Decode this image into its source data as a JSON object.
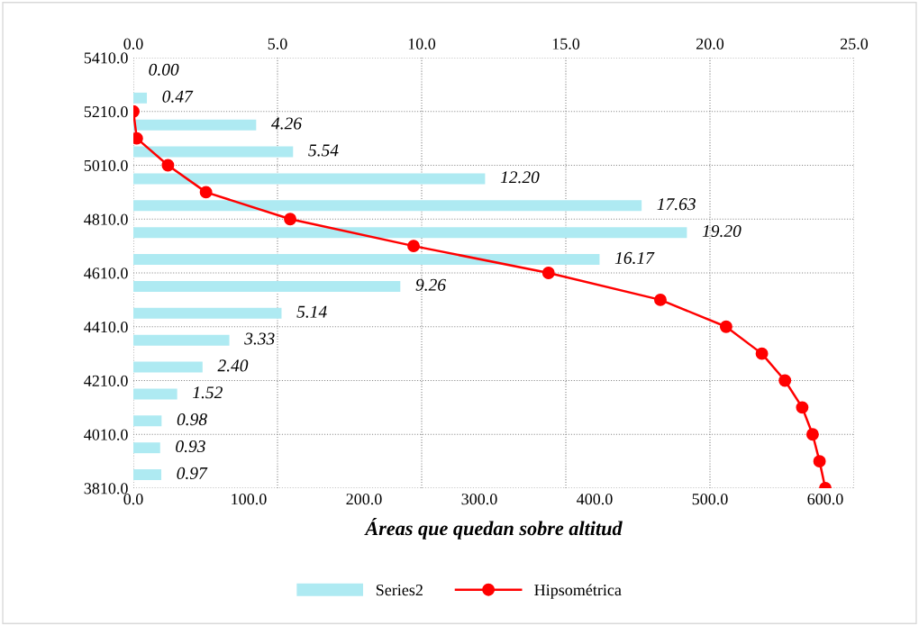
{
  "chart_data": {
    "type": "bar",
    "orientation": "horizontal",
    "xlabel": "Áreas que quedan sobre altitud",
    "xlim": [
      0,
      625
    ],
    "xticks": [
      {
        "value": 0,
        "label": "0.0"
      },
      {
        "value": 100,
        "label": "100.0"
      },
      {
        "value": 200,
        "label": "200.0"
      },
      {
        "value": 300,
        "label": "300.0"
      },
      {
        "value": 400,
        "label": "400.0"
      },
      {
        "value": 500,
        "label": "500.0"
      },
      {
        "value": 600,
        "label": "600.0"
      }
    ],
    "x2lim": [
      0,
      25
    ],
    "x2ticks": [
      {
        "value": 0,
        "label": "0.0"
      },
      {
        "value": 5,
        "label": "5.0"
      },
      {
        "value": 10,
        "label": "10.0"
      },
      {
        "value": 15,
        "label": "15.0"
      },
      {
        "value": 20,
        "label": "20.0"
      },
      {
        "value": 25,
        "label": "25.0"
      }
    ],
    "ylim": [
      3810,
      5410
    ],
    "yticks": [
      {
        "value": 3810,
        "label": "3810.0"
      },
      {
        "value": 4010,
        "label": "4010.0"
      },
      {
        "value": 4210,
        "label": "4210.0"
      },
      {
        "value": 4410,
        "label": "4410.0"
      },
      {
        "value": 4610,
        "label": "4610.0"
      },
      {
        "value": 4810,
        "label": "4810.0"
      },
      {
        "value": 5010,
        "label": "5010.0"
      },
      {
        "value": 5210,
        "label": "5210.0"
      },
      {
        "value": 5410,
        "label": "5410.0"
      }
    ],
    "grid": true,
    "legend": "bottom",
    "marker": "circle",
    "line_style": "solid",
    "series": [
      {
        "name": "Series2",
        "axis": "x2",
        "color": "#aeeaf2",
        "x": [
          5360,
          5260,
          5160,
          5060,
          4960,
          4860,
          4760,
          4660,
          4560,
          4460,
          4360,
          4260,
          4160,
          4060,
          3960,
          3860
        ],
        "values": [
          0.0,
          0.47,
          4.26,
          5.54,
          12.2,
          17.63,
          19.2,
          16.17,
          9.26,
          5.14,
          3.33,
          2.4,
          1.52,
          0.98,
          0.93,
          0.97
        ],
        "value_labels": [
          "0.00",
          "0.47",
          "4.26",
          "5.54",
          "12.20",
          "17.63",
          "19.20",
          "16.17",
          "9.26",
          "5.14",
          "3.33",
          "2.40",
          "1.52",
          "0.98",
          "0.93",
          "0.97"
        ]
      },
      {
        "name": "Hipsométrica",
        "type": "line",
        "color": "#ff0000",
        "x": [
          5210,
          5110,
          5010,
          4910,
          4810,
          4710,
          4610,
          4510,
          4410,
          4310,
          4210,
          4110,
          4010,
          3910,
          3810
        ],
        "values": [
          0,
          3,
          30,
          63,
          136,
          243,
          360,
          457,
          514,
          545,
          565,
          580,
          589,
          595,
          600
        ]
      }
    ]
  }
}
